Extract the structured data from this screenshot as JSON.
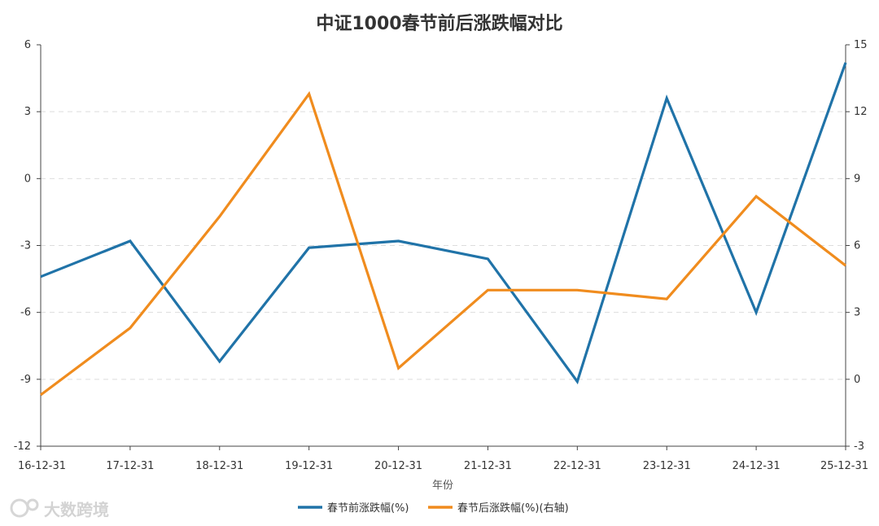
{
  "chart_data": {
    "type": "line",
    "title": "中证1000春节前后涨跌幅对比",
    "xlabel": "年份",
    "categories": [
      "16-12-31",
      "17-12-31",
      "18-12-31",
      "19-12-31",
      "20-12-31",
      "21-12-31",
      "22-12-31",
      "23-12-31",
      "24-12-31",
      "25-12-31"
    ],
    "y_left": {
      "min": -12,
      "max": 6,
      "ticks": [
        "-12",
        "-9",
        "-6",
        "-3",
        "0",
        "3",
        "6"
      ]
    },
    "y_right": {
      "min": -3,
      "max": 15,
      "ticks": [
        "-3",
        "0",
        "3",
        "6",
        "9",
        "12",
        "15"
      ]
    },
    "series": [
      {
        "name": "春节前涨跌幅(%)",
        "axis": "left",
        "color": "#2073A8",
        "values": [
          -4.4,
          -2.8,
          -8.2,
          -3.1,
          -2.8,
          -3.6,
          -9.1,
          3.6,
          -6.0,
          5.2
        ]
      },
      {
        "name": "春节后涨跌幅(%)(右轴)",
        "axis": "right",
        "color": "#F08C1E",
        "values": [
          -0.7,
          2.3,
          7.3,
          12.8,
          0.5,
          4.0,
          4.0,
          3.6,
          8.2,
          5.1
        ]
      }
    ],
    "grid": "horizontal-dashed",
    "legend": "bottom-center"
  },
  "watermark": {
    "text": "大数跨境"
  }
}
